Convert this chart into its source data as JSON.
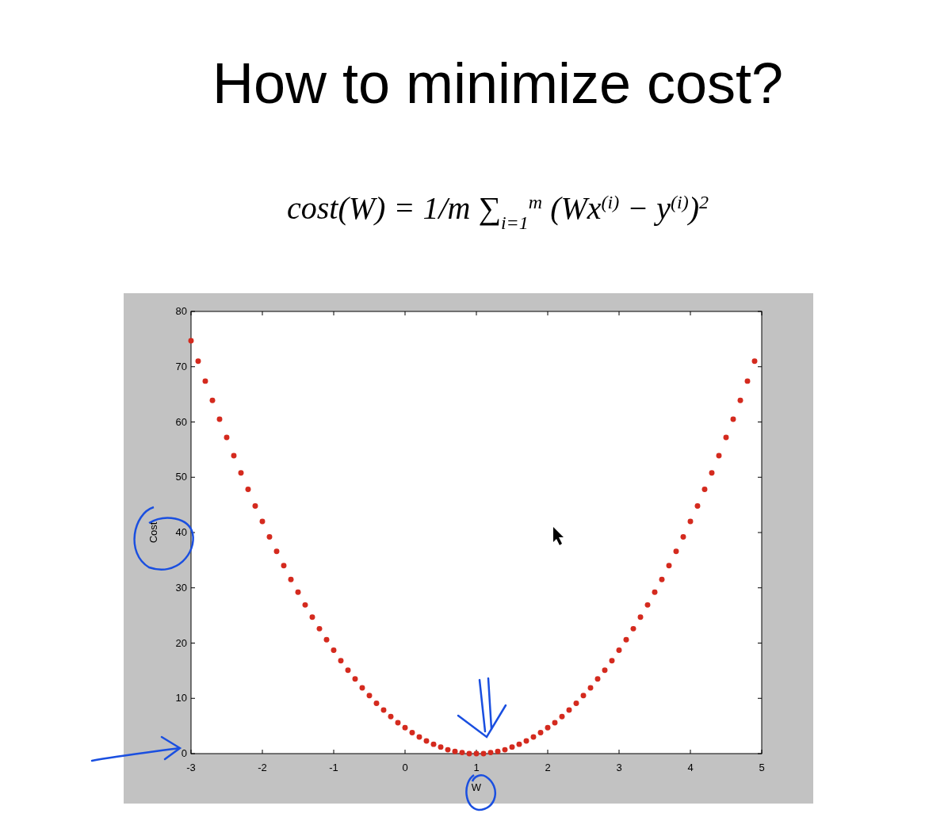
{
  "chart_data": {
    "type": "scatter",
    "title": "How to minimize cost?",
    "subtitle": "cost(W) = 1/m ∑$_{i=1}$$^{m}$ (Wx$^{(i)}$ − y$^{(i)}$)$^{2}$",
    "xlabel": "W",
    "ylabel": "Cost",
    "x": [
      -3,
      -2.9,
      -2.8,
      -2.7,
      -2.6,
      -2.5,
      -2.4,
      -2.3,
      -2.2,
      -2.1,
      -2,
      -1.9,
      -1.8,
      -1.7,
      -1.6,
      -1.5,
      -1.4,
      -1.3,
      -1.2,
      -1.1,
      -1,
      -0.9,
      -0.8,
      -0.7,
      -0.6,
      -0.5,
      -0.4,
      -0.3,
      -0.2,
      -0.1,
      0,
      0.1,
      0.2,
      0.3,
      0.4,
      0.5,
      0.6,
      0.7,
      0.8,
      0.9,
      1,
      1.1,
      1.2,
      1.3,
      1.4,
      1.5,
      1.6,
      1.7,
      1.8,
      1.9,
      2,
      2.1,
      2.2,
      2.3,
      2.4,
      2.5,
      2.6,
      2.7,
      2.8,
      2.9,
      3,
      3.1,
      3.2,
      3.3,
      3.4,
      3.5,
      3.6,
      3.7,
      3.8,
      3.9,
      4,
      4.1,
      4.2,
      4.3,
      4.4,
      4.5,
      4.6,
      4.7,
      4.8,
      4.9
    ],
    "series": [
      {
        "color": "#d42a1e",
        "values": [
          74.7,
          71,
          67.4,
          63.9,
          60.5,
          57.2,
          53.9,
          50.8,
          47.8,
          44.8,
          42,
          39.2,
          36.6,
          34,
          31.5,
          29.2,
          26.9,
          24.7,
          22.6,
          20.6,
          18.7,
          16.8,
          15.1,
          13.5,
          11.9,
          10.5,
          9.1,
          7.9,
          6.7,
          5.6,
          4.7,
          3.8,
          3,
          2.3,
          1.7,
          1.2,
          0.7,
          0.4,
          0.2,
          0,
          0,
          0,
          0.2,
          0.4,
          0.7,
          1.2,
          1.7,
          2.3,
          3,
          3.8,
          4.7,
          5.6,
          6.7,
          7.9,
          9.1,
          10.5,
          11.9,
          13.5,
          15.1,
          16.8,
          18.7,
          20.6,
          22.6,
          24.7,
          26.9,
          29.2,
          31.5,
          34,
          36.6,
          39.2,
          42,
          44.8,
          47.8,
          50.8,
          53.9,
          57.2,
          60.5,
          63.9,
          67.4,
          71
        ]
      }
    ],
    "xlim": [
      -3,
      5
    ],
    "xticks": [
      -3,
      -2,
      -1,
      0,
      1,
      2,
      3,
      4,
      5
    ],
    "ylim": [
      0,
      80
    ],
    "yticks": [
      0,
      10,
      20,
      30,
      40,
      50,
      60,
      70,
      80
    ],
    "marker": "circle",
    "grid": false
  }
}
